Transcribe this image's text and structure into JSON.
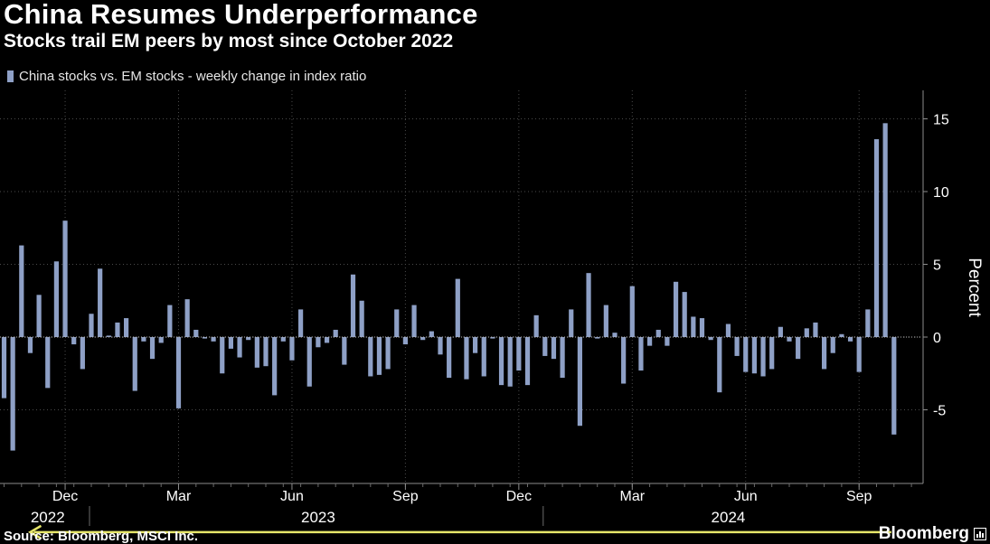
{
  "chart_data": {
    "type": "bar",
    "title": "China Resumes Underperformance",
    "subtitle": "Stocks trail EM peers by most since October 2022",
    "legend": [
      {
        "name": "China stocks vs. EM stocks - weekly change in index ratio",
        "color": "#8ea0c6"
      }
    ],
    "ylabel": "Percent",
    "ylim": [
      -10,
      17
    ],
    "yticks": [
      -5,
      0,
      5,
      10,
      15
    ],
    "grid": true,
    "source": "Source: Bloomberg, MSCI Inc.",
    "brand": "Bloomberg",
    "xaxis": {
      "month_labels": [
        {
          "label": "Dec",
          "week": 7
        },
        {
          "label": "Mar",
          "week": 20
        },
        {
          "label": "Jun",
          "week": 33
        },
        {
          "label": "Sep",
          "week": 46
        },
        {
          "label": "Dec",
          "week": 59
        },
        {
          "label": "Mar",
          "week": 72
        },
        {
          "label": "Jun",
          "week": 85
        },
        {
          "label": "Sep",
          "week": 98
        }
      ],
      "year_labels": [
        {
          "label": "2022",
          "week": 5
        },
        {
          "label": "2023",
          "week": 36
        },
        {
          "label": "2024",
          "week": 83
        }
      ],
      "year_dividers": [
        10,
        62
      ]
    },
    "values": [
      -4.2,
      -7.8,
      6.3,
      -1.1,
      2.9,
      -3.5,
      5.2,
      8.0,
      -0.5,
      -2.2,
      1.6,
      4.7,
      0.1,
      1.0,
      1.3,
      -3.7,
      -0.3,
      -1.5,
      -0.4,
      2.2,
      -4.9,
      2.6,
      0.5,
      -0.1,
      -0.3,
      -2.5,
      -0.8,
      -1.4,
      -0.2,
      -2.1,
      -2.0,
      -4.0,
      -0.3,
      -1.6,
      1.9,
      -3.4,
      -0.7,
      -0.4,
      0.5,
      -1.9,
      4.3,
      2.5,
      -2.7,
      -2.6,
      -2.2,
      1.9,
      -0.5,
      2.2,
      -0.2,
      0.4,
      -1.2,
      -2.8,
      4.0,
      -2.9,
      -1.1,
      -2.7,
      -0.1,
      -3.3,
      -3.4,
      -2.3,
      -3.3,
      1.5,
      -1.3,
      -1.5,
      -2.8,
      1.9,
      -6.1,
      4.4,
      -0.1,
      2.2,
      0.3,
      -3.2,
      3.5,
      -2.3,
      -0.6,
      0.5,
      -0.6,
      3.8,
      3.1,
      1.4,
      1.3,
      -0.2,
      -3.8,
      0.9,
      -1.3,
      -2.4,
      -2.5,
      -2.7,
      -2.2,
      0.7,
      -0.3,
      -1.5,
      0.6,
      1.0,
      -2.2,
      -1.1,
      0.2,
      -0.3,
      -2.4,
      1.9,
      13.6,
      14.7,
      -6.7
    ]
  },
  "annotation": {
    "from_week": 102,
    "to_week": 3,
    "value": -6.7,
    "color": "#e6e66a"
  }
}
